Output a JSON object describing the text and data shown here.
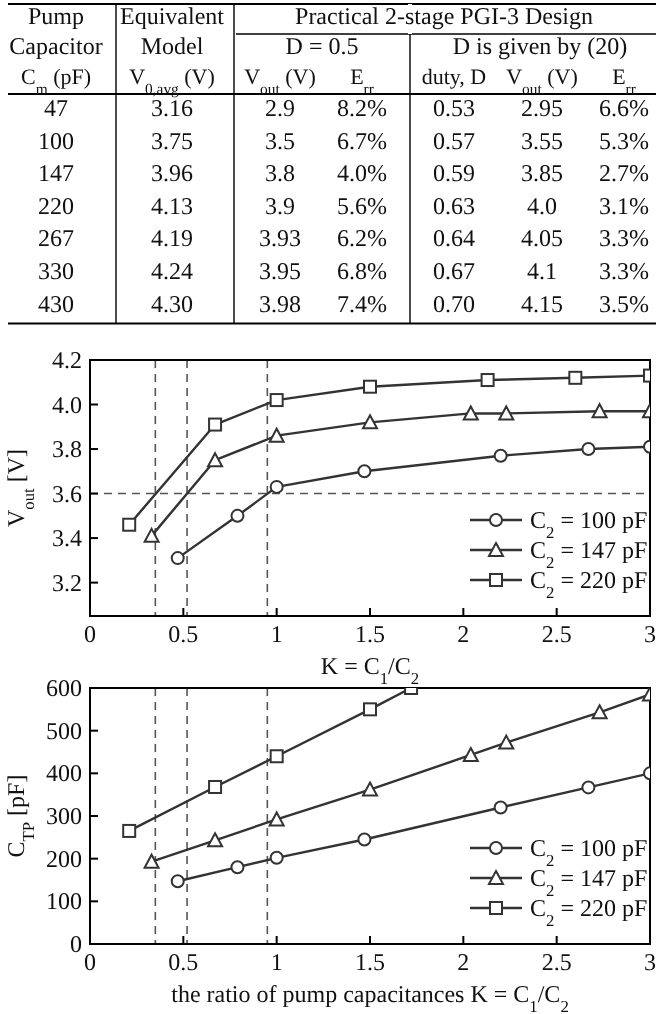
{
  "chart_data": [
    {
      "type": "other",
      "annotations": [
        "Pump",
        "Capacitor",
        "Equivalent",
        "Model",
        "Practical 2-stage PGI-3 Design",
        "D = 0.5",
        "D is given by (20)"
      ],
      "categories": [
        "C$_{m}$ (pF)",
        "V$_{0,avg}$ (V)",
        "V$_{out}$ (V)",
        "E$_{rr}$",
        "duty, D",
        "V$_{out}$ (V)",
        "E$_{rr}$"
      ],
      "cell_labels": [
        [
          "47",
          "3.16",
          "2.9",
          "8.2%",
          "0.53",
          "2.95",
          "6.6%"
        ],
        [
          "100",
          "3.75",
          "3.5",
          "6.7%",
          "0.57",
          "3.55",
          "5.3%"
        ],
        [
          "147",
          "3.96",
          "3.8",
          "4.0%",
          "0.59",
          "3.85",
          "2.7%"
        ],
        [
          "220",
          "4.13",
          "3.9",
          "5.6%",
          "0.63",
          "4.0",
          "3.1%"
        ],
        [
          "267",
          "4.19",
          "3.93",
          "6.2%",
          "0.64",
          "4.05",
          "3.3%"
        ],
        [
          "330",
          "4.24",
          "3.95",
          "6.8%",
          "0.67",
          "4.1",
          "3.3%"
        ],
        [
          "430",
          "4.30",
          "3.98",
          "7.4%",
          "0.70",
          "4.15",
          "3.5%"
        ]
      ]
    },
    {
      "type": "line",
      "xlabel": "K = C$_{1}$/C$_{2}$",
      "ylabel": "V$_{out}$ [V]",
      "xlim": [
        0,
        3
      ],
      "xticks": [
        0,
        0.5,
        1,
        1.5,
        2,
        2.5,
        3
      ],
      "ylim": [
        3.05,
        4.2
      ],
      "yticks": [
        3.2,
        3.4,
        3.6,
        3.8,
        {
          "value": 4,
          "label": "4.0"
        },
        4.2
      ],
      "legend": "bottom right",
      "grid": false,
      "ref_lines": [
        {
          "axis": "y",
          "value": 3.6,
          "line_style": "dashed"
        },
        {
          "axis": "x",
          "value": 0.35,
          "line_style": "dashed"
        },
        {
          "axis": "x",
          "value": 0.52,
          "line_style": "dashed"
        },
        {
          "axis": "x",
          "value": 0.95,
          "line_style": "dashed"
        }
      ],
      "series": [
        {
          "name": "C$_{2}$ = 100 pF",
          "color": "#333333",
          "marker": "circle",
          "x": [
            0.47,
            0.79,
            1.0,
            1.47,
            2.2,
            2.67,
            3
          ],
          "values": [
            3.31,
            3.5,
            3.63,
            3.7,
            3.77,
            3.8,
            3.81
          ]
        },
        {
          "name": "C$_{2}$ = 147 pF",
          "color": "#333333",
          "marker": "triangle",
          "x": [
            0.33,
            0.67,
            1.0,
            1.5,
            2.04,
            2.23,
            2.73,
            3
          ],
          "values": [
            3.41,
            3.75,
            3.86,
            3.92,
            3.96,
            3.96,
            3.97,
            3.97
          ]
        },
        {
          "name": "C$_{2}$ = 220 pF",
          "color": "#333333",
          "marker": "square",
          "x": [
            0.21,
            0.67,
            1.0,
            1.5,
            2.13,
            2.6,
            3
          ],
          "values": [
            3.46,
            3.91,
            4.02,
            4.08,
            4.11,
            4.12,
            4.13
          ]
        }
      ]
    },
    {
      "type": "line",
      "xlabel": "the ratio of pump capacitances K = C$_{1}$/C$_{2}$",
      "ylabel": "C$_{TP}$ [pF]",
      "xlim": [
        0,
        3
      ],
      "xticks": [
        0,
        0.5,
        1,
        1.5,
        2,
        2.5,
        3
      ],
      "ylim": [
        0,
        600
      ],
      "yticks": [
        0,
        100,
        200,
        300,
        400,
        500,
        600
      ],
      "legend": "bottom right",
      "grid": false,
      "ref_lines": [
        {
          "axis": "x",
          "value": 0.35,
          "line_style": "dashed"
        },
        {
          "axis": "x",
          "value": 0.52,
          "line_style": "dashed"
        },
        {
          "axis": "x",
          "value": 0.95,
          "line_style": "dashed"
        }
      ],
      "series": [
        {
          "name": "C$_{2}$ = 100 pF",
          "color": "#333333",
          "marker": "circle",
          "x": [
            0.47,
            0.79,
            1.0,
            1.47,
            2.2,
            2.67,
            3
          ],
          "values": [
            147,
            180,
            202,
            245,
            320,
            367,
            400
          ]
        },
        {
          "name": "C$_{2}$ = 147 pF",
          "color": "#333333",
          "marker": "triangle",
          "x": [
            0.33,
            0.67,
            1.0,
            1.5,
            2.04,
            2.23,
            2.73,
            3
          ],
          "values": [
            193,
            243,
            292,
            362,
            443,
            472,
            543,
            585
          ]
        },
        {
          "name": "C$_{2}$ = 220 pF",
          "color": "#333333",
          "marker": "square",
          "x": [
            0.21,
            0.67,
            1.0,
            1.5,
            1.72
          ],
          "values": [
            265,
            368,
            440,
            550,
            600
          ]
        }
      ]
    }
  ]
}
